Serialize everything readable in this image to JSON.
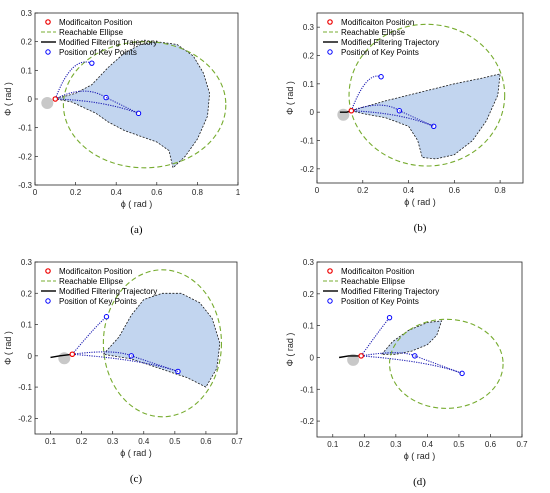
{
  "chart_data": [
    {
      "type": "line",
      "caption": "(a)",
      "xlabel": "ϕ ( rad )",
      "ylabel": "Φ ( rad )",
      "xlim": [
        0,
        1
      ],
      "ylim": [
        -0.3,
        0.3
      ],
      "xticks": [
        "0",
        "0.2",
        "0.4",
        "0.6",
        "0.8",
        "1"
      ],
      "yticks": [
        "-0.3",
        "-0.2",
        "-0.1",
        "0",
        "0.1",
        "0.2",
        "0.3"
      ],
      "legend": [
        "Modificaiton Position",
        "Reachable Ellipse",
        "Modified Filtering Trajectory",
        "Position of Key Points"
      ],
      "modification_position": [
        0.1,
        0.0
      ],
      "key_points": [
        [
          0.28,
          0.125
        ],
        [
          0.35,
          0.005
        ],
        [
          0.51,
          -0.05
        ]
      ],
      "ellipse": {
        "cx": 0.54,
        "cy": -0.02,
        "rx": 0.4,
        "ry": 0.22
      },
      "trajectory": [],
      "reachable_region": [
        [
          0.1,
          0.0
        ],
        [
          0.2,
          0.02
        ],
        [
          0.28,
          0.05
        ],
        [
          0.36,
          0.11
        ],
        [
          0.44,
          0.16
        ],
        [
          0.52,
          0.19
        ],
        [
          0.6,
          0.2
        ],
        [
          0.7,
          0.19
        ],
        [
          0.78,
          0.15
        ],
        [
          0.83,
          0.09
        ],
        [
          0.86,
          0.02
        ],
        [
          0.85,
          -0.06
        ],
        [
          0.8,
          -0.14
        ],
        [
          0.74,
          -0.2
        ],
        [
          0.68,
          -0.24
        ],
        [
          0.66,
          -0.18
        ],
        [
          0.6,
          -0.15
        ],
        [
          0.52,
          -0.13
        ],
        [
          0.44,
          -0.11
        ],
        [
          0.36,
          -0.08
        ],
        [
          0.3,
          -0.05
        ],
        [
          0.24,
          -0.03
        ],
        [
          0.18,
          -0.01
        ],
        [
          0.1,
          0.0
        ]
      ]
    },
    {
      "type": "line",
      "caption": "(b)",
      "xlabel": "ϕ ( rad )",
      "ylabel": "Φ ( rad )",
      "xlim": [
        0,
        0.9
      ],
      "ylim": [
        -0.25,
        0.35
      ],
      "xticks": [
        "0",
        "0.2",
        "0.4",
        "0.6",
        "0.8"
      ],
      "yticks": [
        "-0.2",
        "-0.1",
        "0",
        "0.1",
        "0.2",
        "0.3"
      ],
      "legend": [
        "Modificaiton Position",
        "Reachable Ellipse",
        "Modified Filtering Trajectory",
        "Position of Key Points"
      ],
      "modification_position": [
        0.15,
        0.005
      ],
      "key_points": [
        [
          0.28,
          0.125
        ],
        [
          0.36,
          0.005
        ],
        [
          0.51,
          -0.05
        ]
      ],
      "ellipse": {
        "cx": 0.48,
        "cy": 0.06,
        "rx": 0.34,
        "ry": 0.25
      },
      "trajectory": [
        [
          0.1,
          0.0
        ],
        [
          0.13,
          0.0
        ],
        [
          0.15,
          0.005
        ]
      ],
      "reachable_region": [
        [
          0.15,
          0.005
        ],
        [
          0.3,
          0.04
        ],
        [
          0.45,
          0.07
        ],
        [
          0.6,
          0.1
        ],
        [
          0.72,
          0.12
        ],
        [
          0.8,
          0.135
        ],
        [
          0.79,
          0.06
        ],
        [
          0.74,
          -0.03
        ],
        [
          0.68,
          -0.1
        ],
        [
          0.6,
          -0.15
        ],
        [
          0.52,
          -0.165
        ],
        [
          0.46,
          -0.16
        ],
        [
          0.44,
          -0.1
        ],
        [
          0.4,
          -0.05
        ],
        [
          0.3,
          -0.02
        ],
        [
          0.2,
          -0.005
        ],
        [
          0.15,
          0.005
        ]
      ]
    },
    {
      "type": "line",
      "caption": "(c)",
      "xlabel": "ϕ ( rad )",
      "ylabel": "Φ ( rad )",
      "xlim": [
        0.05,
        0.7
      ],
      "ylim": [
        -0.25,
        0.3
      ],
      "xticks": [
        "0.1",
        "0.2",
        "0.3",
        "0.4",
        "0.5",
        "0.6",
        "0.7"
      ],
      "yticks": [
        "-0.2",
        "-0.1",
        "0",
        "0.1",
        "0.2",
        "0.3"
      ],
      "legend": [
        "Modificaiton Position",
        "Reachable Ellipse",
        "Modified Filtering Trajectory",
        "Position of Key Points"
      ],
      "modification_position": [
        0.17,
        0.005
      ],
      "key_points": [
        [
          0.28,
          0.125
        ],
        [
          0.36,
          0.0
        ],
        [
          0.51,
          -0.05
        ]
      ],
      "ellipse": {
        "cx": 0.46,
        "cy": 0.04,
        "rx": 0.19,
        "ry": 0.235
      },
      "trajectory": [
        [
          0.1,
          -0.005
        ],
        [
          0.13,
          0.0
        ],
        [
          0.17,
          0.005
        ]
      ],
      "reachable_region": [
        [
          0.27,
          0.005
        ],
        [
          0.32,
          0.06
        ],
        [
          0.36,
          0.13
        ],
        [
          0.4,
          0.18
        ],
        [
          0.46,
          0.2
        ],
        [
          0.52,
          0.2
        ],
        [
          0.58,
          0.17
        ],
        [
          0.62,
          0.12
        ],
        [
          0.645,
          0.04
        ],
        [
          0.635,
          -0.04
        ],
        [
          0.6,
          -0.1
        ],
        [
          0.54,
          -0.07
        ],
        [
          0.45,
          -0.04
        ],
        [
          0.36,
          -0.01
        ],
        [
          0.3,
          0.0
        ],
        [
          0.27,
          0.005
        ]
      ]
    },
    {
      "type": "line",
      "caption": "(d)",
      "xlabel": "ϕ ( rad )",
      "ylabel": "Φ ( rad )",
      "xlim": [
        0.05,
        0.7
      ],
      "ylim": [
        -0.25,
        0.3
      ],
      "xticks": [
        "0.1",
        "0.2",
        "0.3",
        "0.4",
        "0.5",
        "0.6",
        "0.7"
      ],
      "yticks": [
        "-0.2",
        "-0.1",
        "0",
        "0.1",
        "0.2",
        "0.3"
      ],
      "legend": [
        "Modificaiton Position",
        "Reachable Ellipse",
        "Modified Filtering Trajectory",
        "Position of Key Points"
      ],
      "modification_position": [
        0.19,
        0.005
      ],
      "key_points": [
        [
          0.28,
          0.125
        ],
        [
          0.36,
          0.005
        ],
        [
          0.51,
          -0.05
        ]
      ],
      "ellipse": {
        "cx": 0.46,
        "cy": -0.02,
        "rx": 0.18,
        "ry": 0.14
      },
      "trajectory": [
        [
          0.12,
          0.0
        ],
        [
          0.15,
          0.005
        ],
        [
          0.19,
          0.005
        ]
      ],
      "reachable_region": [
        [
          0.255,
          0.01
        ],
        [
          0.29,
          0.05
        ],
        [
          0.34,
          0.085
        ],
        [
          0.4,
          0.11
        ],
        [
          0.445,
          0.115
        ],
        [
          0.43,
          0.07
        ],
        [
          0.4,
          0.04
        ],
        [
          0.35,
          0.02
        ],
        [
          0.3,
          0.01
        ],
        [
          0.255,
          0.01
        ]
      ]
    }
  ]
}
